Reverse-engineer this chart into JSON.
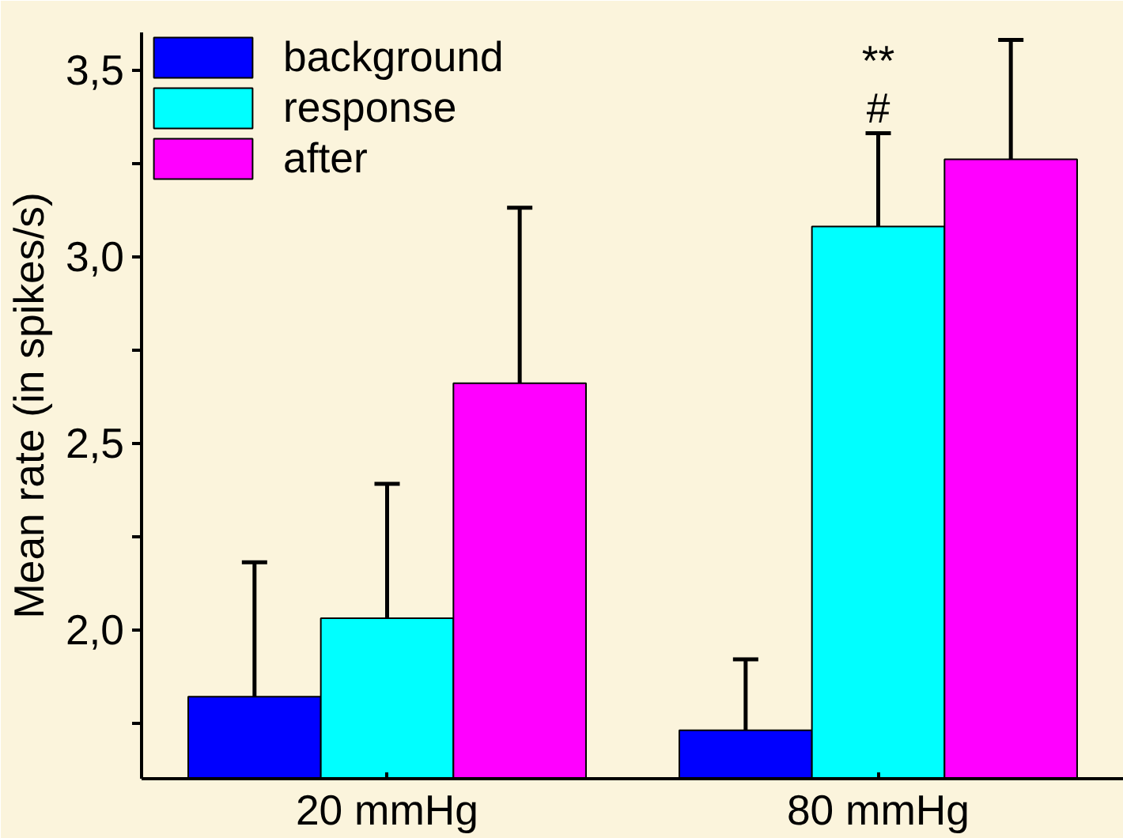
{
  "chart_data": {
    "type": "bar",
    "ylabel": "Mean rate (in spikes/s)",
    "categories": [
      "20 mmHg",
      "80 mmHg"
    ],
    "series": [
      {
        "name": "background",
        "color": "#0000ff",
        "values": [
          1.82,
          1.73
        ],
        "errors": [
          [
            1.82,
            2.18
          ],
          [
            1.73,
            1.92
          ]
        ]
      },
      {
        "name": "response",
        "color": "#00ffff",
        "values": [
          2.03,
          3.08
        ],
        "errors": [
          [
            2.03,
            2.39
          ],
          [
            3.08,
            3.33
          ]
        ]
      },
      {
        "name": "after",
        "color": "#ff00ff",
        "values": [
          2.66,
          3.26
        ],
        "errors": [
          [
            2.66,
            3.13
          ],
          [
            3.26,
            3.58
          ]
        ]
      }
    ],
    "ylim": [
      1.6,
      3.6
    ],
    "yticks": [
      {
        "value": 1.75,
        "label": null
      },
      {
        "value": 2.0,
        "label": "2,0"
      },
      {
        "value": 2.25,
        "label": null
      },
      {
        "value": 2.5,
        "label": "2,5"
      },
      {
        "value": 2.75,
        "label": null
      },
      {
        "value": 3.0,
        "label": "3,0"
      },
      {
        "value": 3.25,
        "label": null
      },
      {
        "value": 3.5,
        "label": "3,5"
      }
    ],
    "annotations": [
      "#",
      "**"
    ],
    "grid": false,
    "legend": "top left"
  }
}
